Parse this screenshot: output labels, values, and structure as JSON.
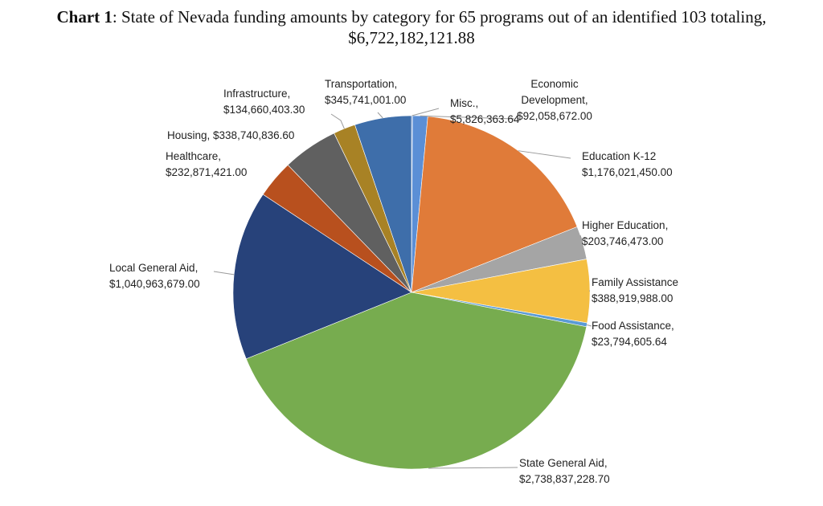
{
  "title": {
    "bold": "Chart 1",
    "line1": ": State of Nevada funding amounts by category for 65 programs out of an identified 103 totaling,",
    "line2": "$6,722,182,121.88"
  },
  "chart_data": {
    "type": "pie",
    "title": "Chart 1: State of Nevada funding amounts by category for 65 programs out of an identified 103 totaling, $6,722,182,121.88",
    "slices": [
      {
        "name": "Misc.",
        "value": 5826363.64,
        "label": [
          "Misc.,",
          "$5,826,363.64"
        ],
        "color": "#4472c4"
      },
      {
        "name": "Economic Development",
        "value": 92058672.0,
        "label": [
          "Economic",
          "Development,",
          "$92,058,672.00"
        ],
        "color": "#5b8fd6"
      },
      {
        "name": "Education K-12",
        "value": 1176021450.0,
        "label": [
          "Education K-12",
          "$1,176,021,450.00"
        ],
        "color": "#e07b39"
      },
      {
        "name": "Higher Education",
        "value": 203746473.0,
        "label": [
          "Higher Education,",
          "$203,746,473.00"
        ],
        "color": "#a5a5a5"
      },
      {
        "name": "Family Assistance",
        "value": 388919988.0,
        "label": [
          "Family Assistance",
          "$388,919,988.00"
        ],
        "color": "#f4bf42"
      },
      {
        "name": "Food Assistance",
        "value": 23794605.64,
        "label": [
          "Food Assistance,",
          "$23,794,605.64"
        ],
        "color": "#5a9bd5"
      },
      {
        "name": "State General Aid",
        "value": 2738837228.7,
        "label": [
          "State General Aid,",
          "$2,738,837,228.70"
        ],
        "color": "#77ac4f"
      },
      {
        "name": "Local General Aid",
        "value": 1040963679.0,
        "label": [
          "Local General Aid,",
          "$1,040,963,679.00"
        ],
        "color": "#27427a"
      },
      {
        "name": "Healthcare",
        "value": 232871421.0,
        "label": [
          "Healthcare,",
          "$232,871,421.00"
        ],
        "color": "#b8501e"
      },
      {
        "name": "Housing",
        "value": 338740836.6,
        "label": [
          "Housing, $338,740,836.60"
        ],
        "color": "#606060"
      },
      {
        "name": "Infrastructure",
        "value": 134660403.3,
        "label": [
          "Infrastructure,",
          "$134,660,403.30"
        ],
        "color": "#a88225"
      },
      {
        "name": "Transportation",
        "value": 345741001.0,
        "label": [
          "Transportation,",
          "$345,741,001.00"
        ],
        "color": "#3e6eaa"
      }
    ]
  }
}
